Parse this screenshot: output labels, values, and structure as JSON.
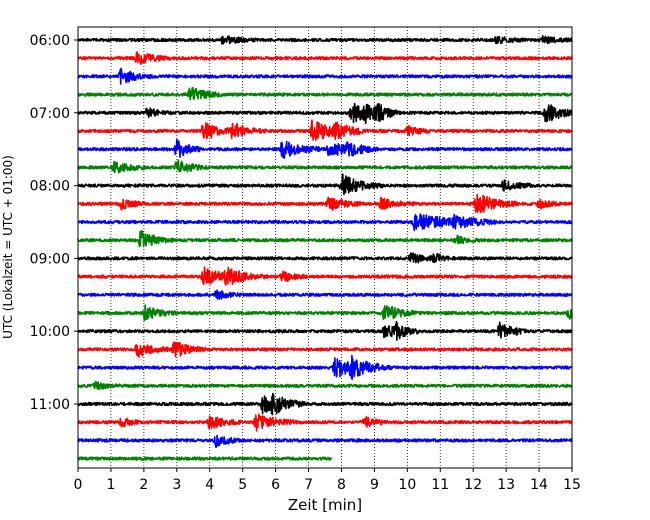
{
  "chart_data": {
    "type": "line",
    "title": "",
    "xlabel": "Zeit  [min]",
    "ylabel": "UTC (Lokalzeit = UTC + 01:00)",
    "xlim": [
      0,
      15
    ],
    "x_ticks": [
      "0",
      "1",
      "2",
      "3",
      "4",
      "5",
      "6",
      "7",
      "8",
      "9",
      "10",
      "11",
      "12",
      "13",
      "14",
      "15"
    ],
    "y_tick_labels": [
      "06:00",
      "07:00",
      "08:00",
      "09:00",
      "10:00",
      "11:00"
    ],
    "y_tick_rows": [
      0,
      4,
      8,
      12,
      16,
      20
    ],
    "grid": "vertical dotted lines at each minute",
    "row_minutes": 15,
    "colors": [
      "#000000",
      "#ff0000",
      "#0000ff",
      "#008000"
    ],
    "series": [
      {
        "start": "06:00",
        "end_minute": 15,
        "events": [
          [
            4.4,
            0.5,
            0.4
          ],
          [
            12.7,
            0.35,
            0.4
          ],
          [
            14.1,
            0.35,
            0.4
          ]
        ]
      },
      {
        "start": "06:15",
        "end_minute": 15,
        "events": [
          [
            1.8,
            0.7,
            0.4
          ]
        ]
      },
      {
        "start": "06:30",
        "end_minute": 15,
        "events": [
          [
            1.3,
            0.8,
            0.4
          ]
        ]
      },
      {
        "start": "06:45",
        "end_minute": 15,
        "events": [
          [
            3.4,
            0.9,
            0.4
          ]
        ]
      },
      {
        "start": "07:00",
        "end_minute": 15,
        "events": [
          [
            2.1,
            0.5,
            0.3
          ],
          [
            8.3,
            1.1,
            0.5
          ],
          [
            8.7,
            0.7,
            0.4
          ],
          [
            9.1,
            0.5,
            0.3
          ],
          [
            14.2,
            1.2,
            0.4
          ]
        ]
      },
      {
        "start": "07:15",
        "end_minute": 15,
        "events": [
          [
            3.8,
            1.0,
            0.5
          ],
          [
            4.7,
            0.8,
            0.4
          ],
          [
            7.1,
            1.2,
            0.6
          ],
          [
            7.8,
            0.7,
            0.4
          ],
          [
            10.0,
            0.5,
            0.3
          ]
        ]
      },
      {
        "start": "07:30",
        "end_minute": 15,
        "events": [
          [
            3.0,
            1.1,
            0.3
          ],
          [
            6.2,
            1.0,
            0.5
          ],
          [
            7.6,
            0.9,
            0.5
          ],
          [
            8.2,
            0.6,
            0.4
          ]
        ]
      },
      {
        "start": "07:45",
        "end_minute": 15,
        "events": [
          [
            1.1,
            0.7,
            0.4
          ],
          [
            3.0,
            0.8,
            0.4
          ]
        ]
      },
      {
        "start": "08:00",
        "end_minute": 15,
        "events": [
          [
            8.0,
            1.2,
            0.5
          ],
          [
            12.9,
            0.6,
            0.4
          ]
        ]
      },
      {
        "start": "08:15",
        "end_minute": 15,
        "events": [
          [
            1.3,
            0.6,
            0.3
          ],
          [
            7.6,
            0.8,
            0.4
          ],
          [
            9.2,
            0.6,
            0.4
          ],
          [
            12.1,
            1.2,
            0.5
          ],
          [
            14.0,
            0.5,
            0.3
          ]
        ]
      },
      {
        "start": "08:30",
        "end_minute": 15,
        "events": [
          [
            10.2,
            0.9,
            1.0
          ],
          [
            11.4,
            0.5,
            0.5
          ]
        ]
      },
      {
        "start": "08:45",
        "end_minute": 15,
        "events": [
          [
            1.9,
            1.0,
            0.4
          ],
          [
            11.5,
            0.4,
            0.3
          ]
        ]
      },
      {
        "start": "09:00",
        "end_minute": 15,
        "events": [
          [
            10.1,
            0.6,
            0.4
          ],
          [
            10.8,
            0.4,
            0.3
          ]
        ]
      },
      {
        "start": "09:15",
        "end_minute": 15,
        "events": [
          [
            3.8,
            1.0,
            0.5
          ],
          [
            4.5,
            0.8,
            0.5
          ],
          [
            6.2,
            0.6,
            0.3
          ]
        ]
      },
      {
        "start": "09:30",
        "end_minute": 15,
        "events": [
          [
            4.2,
            0.5,
            0.3
          ]
        ]
      },
      {
        "start": "09:45",
        "end_minute": 15,
        "events": [
          [
            2.0,
            0.8,
            0.4
          ],
          [
            9.3,
            1.0,
            0.4
          ],
          [
            14.9,
            0.6,
            0.3
          ]
        ]
      },
      {
        "start": "10:00",
        "end_minute": 15,
        "events": [
          [
            9.3,
            0.7,
            0.4
          ],
          [
            9.6,
            0.8,
            0.3
          ],
          [
            12.8,
            0.9,
            0.4
          ]
        ]
      },
      {
        "start": "10:15",
        "end_minute": 15,
        "events": [
          [
            1.8,
            0.8,
            0.4
          ],
          [
            2.9,
            1.0,
            0.4
          ]
        ]
      },
      {
        "start": "10:30",
        "end_minute": 15,
        "events": [
          [
            7.8,
            1.1,
            0.6
          ],
          [
            8.3,
            0.8,
            0.5
          ]
        ]
      },
      {
        "start": "10:45",
        "end_minute": 15,
        "events": [
          [
            0.5,
            0.4,
            0.3
          ]
        ]
      },
      {
        "start": "11:00",
        "end_minute": 15,
        "events": [
          [
            5.6,
            1.0,
            0.5
          ],
          [
            5.9,
            0.7,
            0.4
          ]
        ]
      },
      {
        "start": "11:15",
        "end_minute": 15,
        "events": [
          [
            1.3,
            0.5,
            0.3
          ],
          [
            4.0,
            0.7,
            0.4
          ],
          [
            5.4,
            1.0,
            0.5
          ],
          [
            8.7,
            0.6,
            0.3
          ]
        ]
      },
      {
        "start": "11:30",
        "end_minute": 15,
        "events": [
          [
            4.2,
            0.7,
            0.3
          ]
        ]
      },
      {
        "start": "11:45",
        "end_minute": 7.7,
        "events": []
      }
    ]
  }
}
